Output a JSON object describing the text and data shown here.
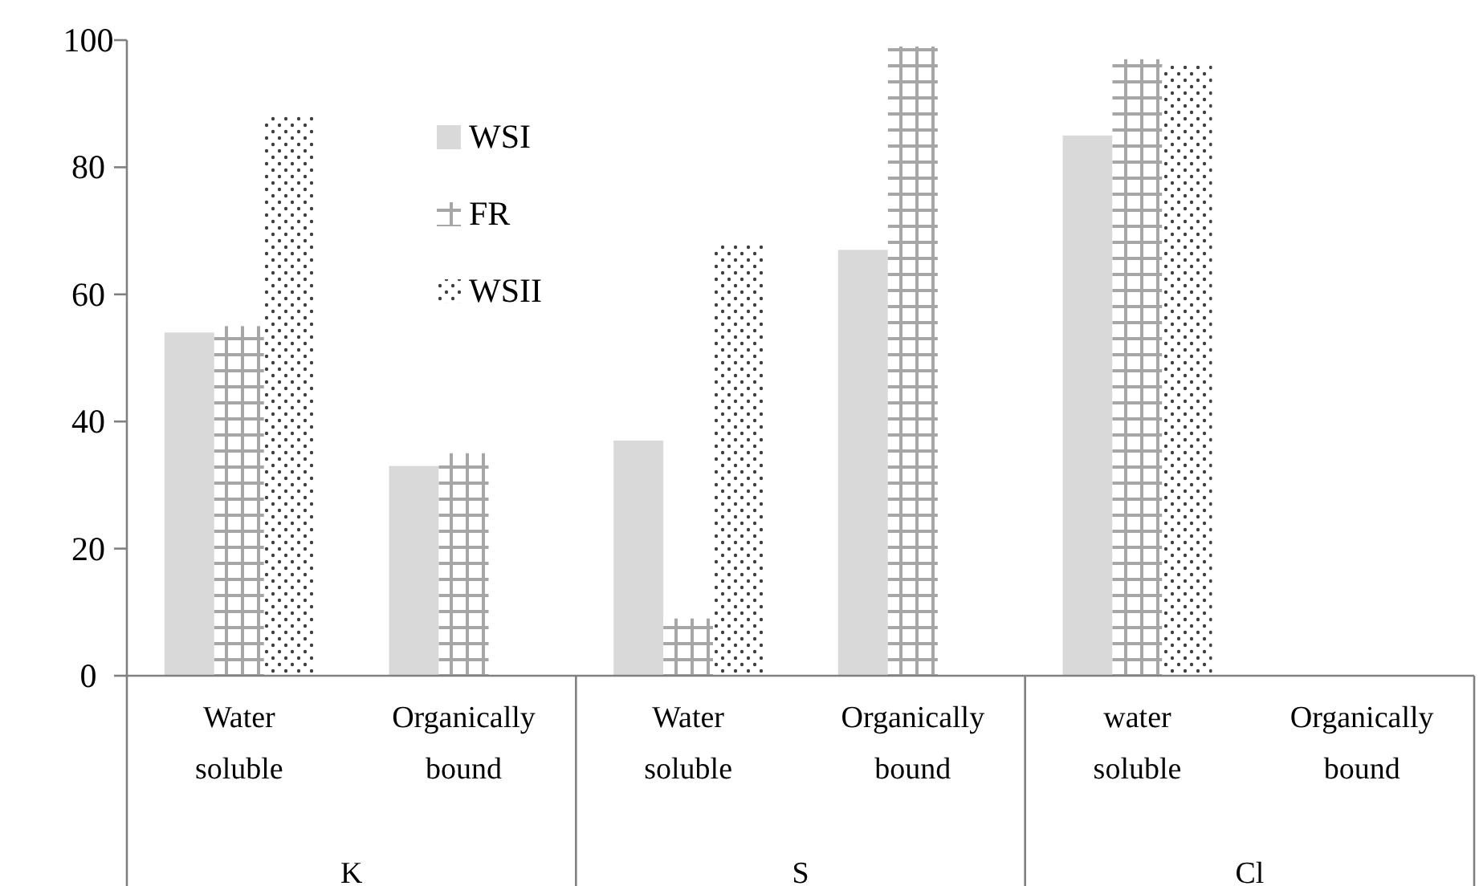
{
  "chart_data": {
    "type": "bar",
    "categories": [
      "Water soluble",
      "Organically bound",
      "Water soluble",
      "Organically bound",
      "water soluble",
      "Organically bound"
    ],
    "annotations": [
      "K",
      "S",
      "Cl"
    ],
    "series": [
      {
        "name": "WSI",
        "color": "#d9d9d9",
        "values": [
          54,
          33,
          37,
          67,
          85,
          null
        ]
      },
      {
        "name": "FR",
        "color": "#a6a6a6",
        "values": [
          55,
          35,
          9,
          99,
          97,
          null
        ]
      },
      {
        "name": "WSII",
        "color": "#404040",
        "values": [
          88,
          null,
          68,
          null,
          96,
          null
        ]
      }
    ],
    "ylim": [
      0,
      100
    ],
    "yticks": [
      0,
      20,
      40,
      60,
      80,
      100
    ],
    "grid": false,
    "legend": "top left"
  }
}
